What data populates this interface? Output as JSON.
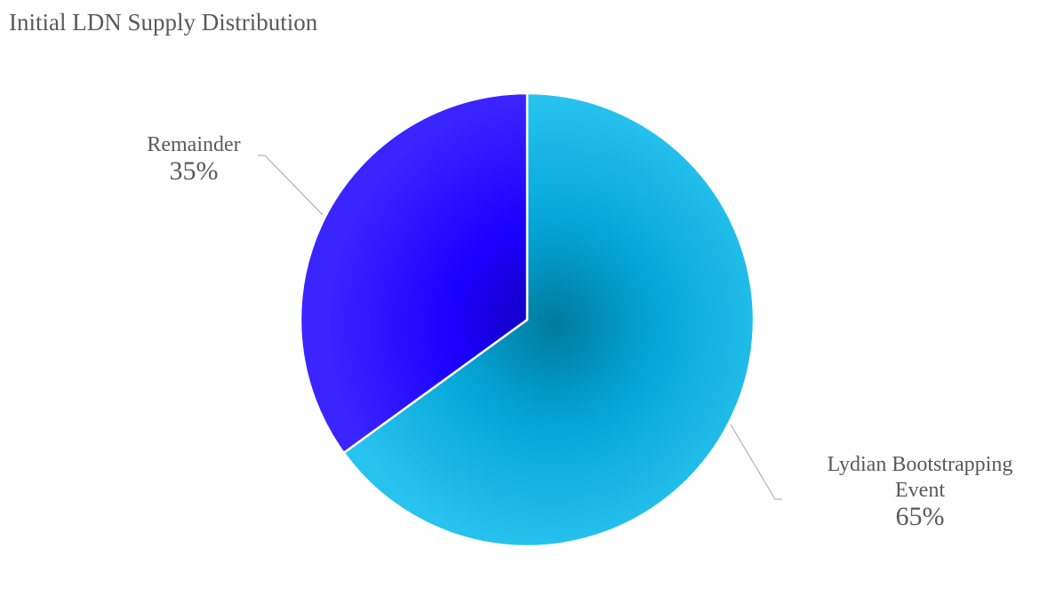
{
  "chart_data": {
    "type": "pie",
    "title": "Initial LDN Supply Distribution",
    "slices": [
      {
        "label": "Lydian Bootstrapping Event",
        "label_lines": [
          "Lydian Bootstrapping",
          "Event"
        ],
        "value": 65,
        "value_label": "65%",
        "color": "#16b4e4",
        "center_color": "#007a9e"
      },
      {
        "label": "Remainder",
        "label_lines": [
          "Remainder"
        ],
        "value": 35,
        "value_label": "35%",
        "color": "#1a00ff",
        "center_color": "#1000b0"
      }
    ],
    "start": "top",
    "direction": "clockwise",
    "legend": "none",
    "label_color": "#595959"
  }
}
